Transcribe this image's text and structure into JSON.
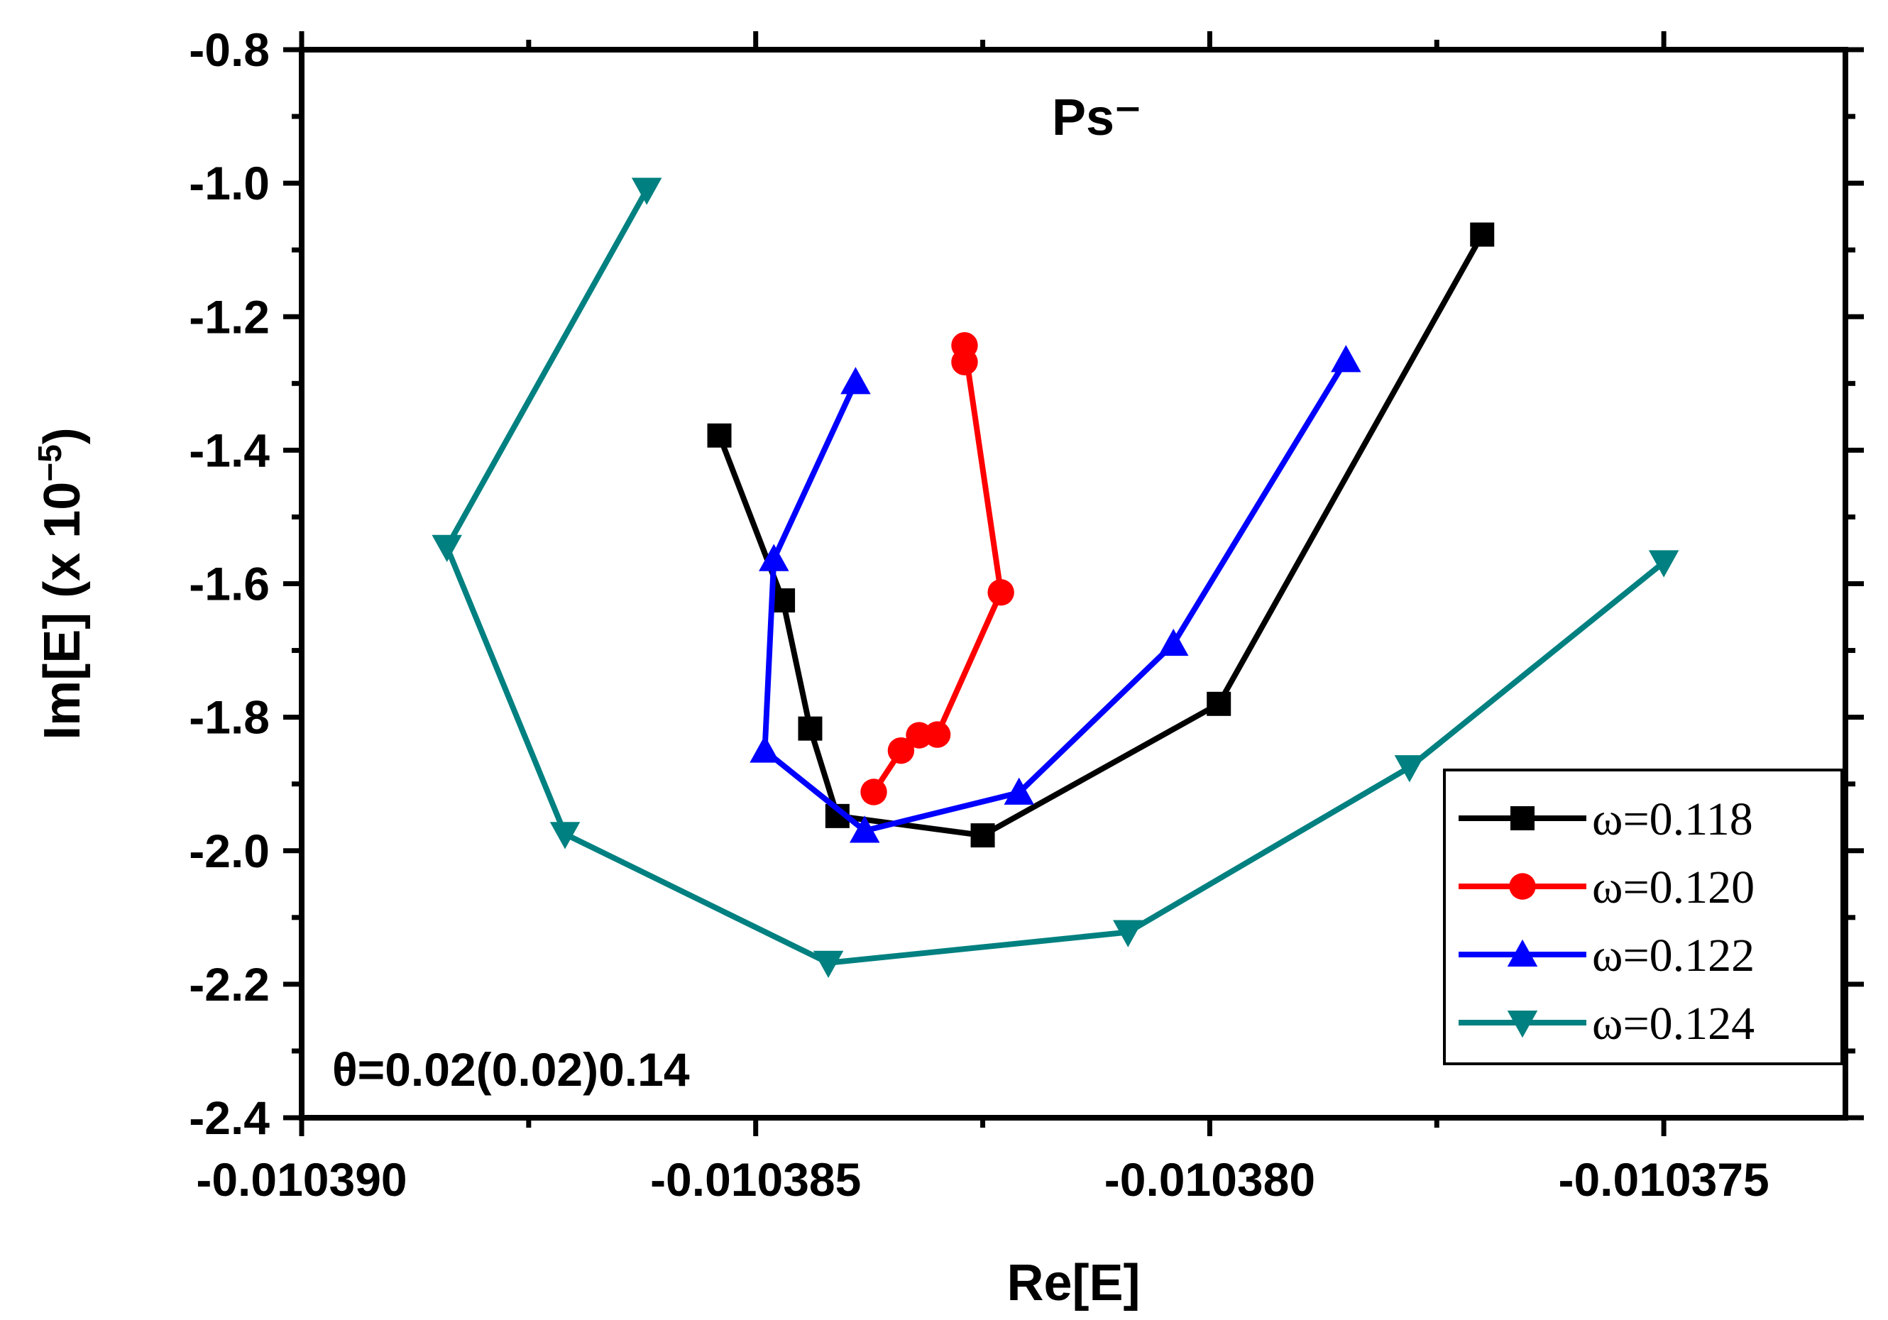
{
  "chart_data": {
    "type": "line",
    "title": "Ps⁻",
    "xlabel": "Re[E]",
    "ylabel": "Im[E] (x 10",
    "ylabel_exp": "−5",
    "ylabel_close": ")",
    "annotation": "θ=0.02(0.02)0.14",
    "xlim": [
      -0.01039,
      -0.010373
    ],
    "ylim": [
      -2.4,
      -0.8
    ],
    "xticks": [
      -0.01039,
      -0.010385,
      -0.01038,
      -0.010375
    ],
    "xtick_labels": [
      "-0.010390",
      "-0.010385",
      "-0.010380",
      "-0.010375"
    ],
    "yticks": [
      -0.8,
      -1.0,
      -1.2,
      -1.4,
      -1.6,
      -1.8,
      -2.0,
      -2.2,
      -2.4
    ],
    "ytick_labels": [
      "-0.8",
      "-1.0",
      "-1.2",
      "-1.4",
      "-1.6",
      "-1.8",
      "-2.0",
      "-2.2",
      "-2.4"
    ],
    "legend_position": "bottom-right",
    "series": [
      {
        "name": "ω=0.118",
        "color": "#000000",
        "marker": "square",
        "x": [
          -0.0103854,
          -0.0103847,
          -0.0103844,
          -0.0103841,
          -0.0103825,
          -0.0103799,
          -0.010377
        ],
        "y": [
          -1.378,
          -1.625,
          -1.817,
          -1.948,
          -1.977,
          -1.78,
          -1.077
        ]
      },
      {
        "name": "ω=0.120",
        "color": "#ff0000",
        "marker": "circle",
        "x": [
          -0.0103837,
          -0.0103834,
          -0.0103832,
          -0.010383,
          -0.0103823,
          -0.0103827,
          -0.0103827
        ],
        "y": [
          -1.912,
          -1.85,
          -1.827,
          -1.826,
          -1.613,
          -1.243,
          -1.268
        ]
      },
      {
        "name": "ω=0.122",
        "color": "#0000ff",
        "marker": "triangle-up",
        "x": [
          -0.0103839,
          -0.0103848,
          -0.0103849,
          -0.0103838,
          -0.0103821,
          -0.0103804,
          -0.0103785
        ],
        "y": [
          -1.298,
          -1.563,
          -1.85,
          -1.97,
          -1.913,
          -1.69,
          -1.265
        ]
      },
      {
        "name": "ω=0.124",
        "color": "#008080",
        "marker": "triangle-down",
        "x": [
          -0.0103862,
          -0.0103884,
          -0.0103871,
          -0.0103842,
          -0.0103809,
          -0.0103778,
          -0.010375
        ],
        "y": [
          -1.01,
          -1.545,
          -1.975,
          -2.168,
          -2.122,
          -1.875,
          -1.568
        ]
      }
    ]
  }
}
